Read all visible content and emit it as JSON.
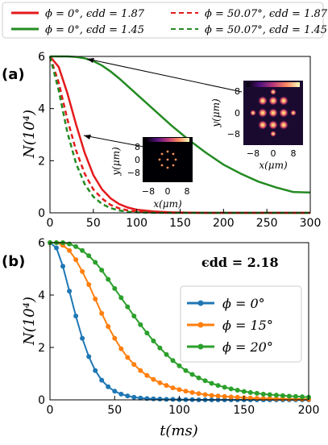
{
  "legend_top": {
    "items": [
      {
        "text": "ϕ = 0°, ϵdd = 1.87",
        "color": "#e41a1c",
        "dash": "solid"
      },
      {
        "text": "ϕ = 50.07°, ϵdd = 1.87",
        "color": "#e41a1c",
        "dash": "dashed"
      },
      {
        "text": "ϕ = 0°, ϵdd = 1.45",
        "color": "#238b22",
        "dash": "solid"
      },
      {
        "text": "ϕ = 50.07°, ϵdd = 1.45",
        "color": "#238b22",
        "dash": "dashed"
      }
    ]
  },
  "panel_a": {
    "label": "(a)",
    "ylabel": "N(10⁴)",
    "xticks": [
      "0",
      "50",
      "100",
      "150",
      "200",
      "250",
      "300"
    ],
    "yticks": [
      "0",
      "2",
      "4",
      "6"
    ],
    "inset_small": {
      "xlabel": "x(μm)",
      "ylabel": "y(μm)",
      "xticks": [
        "−8",
        "0",
        "8"
      ],
      "yticks": [
        "8",
        "0",
        "−8"
      ]
    },
    "inset_large": {
      "xlabel": "x(μm)",
      "ylabel": "y(μm)",
      "xticks": [
        "−8",
        "0",
        "8"
      ],
      "yticks": [
        "8",
        "0",
        "−8"
      ]
    }
  },
  "panel_b": {
    "label": "(b)",
    "ylabel": "N(10⁴)",
    "xlabel": "t(ms)",
    "annotation": "ϵdd = 2.18",
    "xticks": [
      "0",
      "50",
      "100",
      "150",
      "200"
    ],
    "yticks": [
      "0",
      "2",
      "4",
      "6"
    ],
    "legend": [
      {
        "text": "ϕ = 0°",
        "color": "#1f77b4"
      },
      {
        "text": "ϕ = 15°",
        "color": "#ff7f0e"
      },
      {
        "text": "ϕ = 20°",
        "color": "#2ca02c"
      }
    ]
  },
  "chart_data": [
    {
      "type": "line",
      "title": "",
      "xlabel": "",
      "ylabel": "N(10⁴)",
      "xlim": [
        0,
        300
      ],
      "ylim": [
        0,
        6
      ],
      "x": [
        0,
        10,
        20,
        30,
        40,
        50,
        60,
        70,
        80,
        90,
        100,
        120,
        140,
        160,
        180,
        200,
        220,
        240,
        260,
        280,
        300
      ],
      "series": [
        {
          "name": "ϕ = 0°, ϵdd = 1.87",
          "color": "#e41a1c",
          "dash": "solid",
          "values": [
            6.0,
            5.6,
            4.6,
            3.4,
            2.3,
            1.45,
            0.9,
            0.55,
            0.33,
            0.2,
            0.12,
            0.05,
            0.02,
            0.01,
            0.0,
            0.0,
            0.0,
            0.0,
            0.0,
            0.0,
            0.0
          ]
        },
        {
          "name": "ϕ = 50.07°, ϵdd = 1.87",
          "color": "#e41a1c",
          "dash": "dashed",
          "values": [
            6.0,
            5.0,
            3.6,
            2.4,
            1.5,
            0.9,
            0.55,
            0.3,
            0.17,
            0.09,
            0.05,
            0.01,
            0.0,
            0.0,
            0.0,
            0.0,
            0.0,
            0.0,
            0.0,
            0.0,
            0.0
          ]
        },
        {
          "name": "ϕ = 0°, ϵdd = 1.45",
          "color": "#238b22",
          "dash": "solid",
          "values": [
            6.0,
            6.0,
            6.0,
            5.98,
            5.93,
            5.82,
            5.65,
            5.42,
            5.15,
            4.85,
            4.55,
            3.95,
            3.35,
            2.8,
            2.3,
            1.85,
            1.5,
            1.2,
            0.98,
            0.8,
            0.78
          ]
        },
        {
          "name": "ϕ = 50.07°, ϵdd = 1.45",
          "color": "#238b22",
          "dash": "dashed",
          "values": [
            6.0,
            4.7,
            3.1,
            1.9,
            1.1,
            0.62,
            0.34,
            0.18,
            0.09,
            0.04,
            0.02,
            0.0,
            0.0,
            0.0,
            0.0,
            0.0,
            0.0,
            0.0,
            0.0,
            0.0,
            0.0
          ]
        }
      ]
    },
    {
      "type": "line",
      "title": "",
      "xlabel": "t(ms)",
      "ylabel": "N(10⁴)",
      "xlim": [
        0,
        200
      ],
      "ylim": [
        0,
        6
      ],
      "x": [
        0,
        5,
        10,
        15,
        20,
        25,
        30,
        35,
        40,
        45,
        50,
        55,
        60,
        65,
        70,
        75,
        80,
        85,
        90,
        95,
        100,
        105,
        110,
        115,
        120,
        125,
        130,
        135,
        140,
        145,
        150,
        155,
        160,
        165,
        170,
        175,
        180,
        185,
        190,
        195,
        200
      ],
      "series": [
        {
          "name": "ϕ = 0°",
          "color": "#1f77b4",
          "values": [
            6.0,
            5.8,
            5.1,
            4.15,
            3.2,
            2.35,
            1.65,
            1.12,
            0.75,
            0.5,
            0.33,
            0.22,
            0.15,
            0.1,
            0.07,
            0.05,
            0.04,
            0.03,
            0.02,
            0.02,
            0.01,
            0.01,
            0.01,
            0.0,
            0.0,
            0.0,
            0.0,
            0.0,
            0.0,
            0.0,
            0.0,
            0.0,
            0.0,
            0.0,
            0.0,
            0.0,
            0.0,
            0.0,
            0.0,
            0.0,
            0.0
          ]
        },
        {
          "name": "ϕ = 15°",
          "color": "#ff7f0e",
          "values": [
            6.0,
            6.0,
            5.9,
            5.7,
            5.35,
            4.9,
            4.4,
            3.85,
            3.3,
            2.8,
            2.35,
            1.95,
            1.62,
            1.35,
            1.12,
            0.93,
            0.78,
            0.65,
            0.55,
            0.46,
            0.39,
            0.33,
            0.28,
            0.24,
            0.2,
            0.17,
            0.15,
            0.13,
            0.11,
            0.1,
            0.08,
            0.07,
            0.06,
            0.05,
            0.05,
            0.04,
            0.04,
            0.03,
            0.03,
            0.03,
            0.02
          ]
        },
        {
          "name": "ϕ = 20°",
          "color": "#2ca02c",
          "values": [
            6.0,
            6.0,
            6.0,
            5.95,
            5.85,
            5.7,
            5.5,
            5.25,
            4.95,
            4.6,
            4.25,
            3.9,
            3.55,
            3.2,
            2.87,
            2.55,
            2.25,
            1.98,
            1.73,
            1.5,
            1.3,
            1.12,
            0.97,
            0.84,
            0.73,
            0.63,
            0.55,
            0.48,
            0.42,
            0.37,
            0.32,
            0.28,
            0.25,
            0.22,
            0.2,
            0.18,
            0.16,
            0.14,
            0.13,
            0.12,
            0.1
          ]
        }
      ]
    }
  ]
}
